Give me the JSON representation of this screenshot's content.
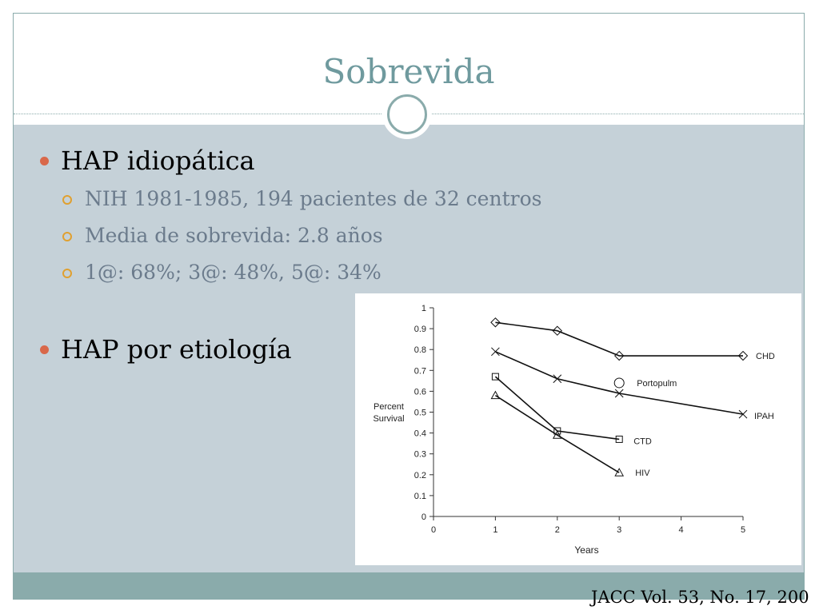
{
  "slide": {
    "title": "Sobrevida",
    "bullets": [
      {
        "text": "HAP idiopática",
        "sub": [
          "NIH 1981-1985, 194 pacientes de 32 centros",
          "Media de sobrevida: 2.8 años",
          "1@: 68%; 3@: 48%, 5@: 34%"
        ]
      },
      {
        "text": "HAP por etiología",
        "sub": []
      }
    ],
    "citation": "JACC Vol. 53, No. 17, 200"
  },
  "colors": {
    "title": "#6f9a9e",
    "content_bg": "#c5d1d8",
    "accent_bar": "#8aabab",
    "bullet_dot": "#d9684a",
    "sub_bullet_ring": "#e0a030",
    "sub_text": "#6b7b8c"
  },
  "chart_data": {
    "type": "line",
    "xlabel": "Years",
    "ylabel": "Percent Survival",
    "xlim": [
      0,
      5
    ],
    "ylim": [
      0,
      1
    ],
    "x_ticks": [
      "0",
      "1",
      "2",
      "3",
      "4",
      "5"
    ],
    "y_ticks": [
      "0",
      "0.1",
      "0.2",
      "0.3",
      "0.4",
      "0.5",
      "0.6",
      "0.7",
      "0.8",
      "0.9",
      "1"
    ],
    "grid": false,
    "series": [
      {
        "name": "CHD",
        "marker": "diamond",
        "x": [
          1,
          2,
          3,
          5
        ],
        "y": [
          0.93,
          0.89,
          0.77,
          0.77
        ]
      },
      {
        "name": "Portopulm",
        "marker": "circle",
        "x": [
          3
        ],
        "y": [
          0.64
        ]
      },
      {
        "name": "IPAH",
        "marker": "x",
        "x": [
          1,
          2,
          3,
          5
        ],
        "y": [
          0.79,
          0.66,
          0.59,
          0.49
        ]
      },
      {
        "name": "CTD",
        "marker": "square",
        "x": [
          1,
          2,
          3
        ],
        "y": [
          0.67,
          0.41,
          0.37
        ]
      },
      {
        "name": "HIV",
        "marker": "triangle",
        "x": [
          1,
          2,
          3
        ],
        "y": [
          0.58,
          0.39,
          0.21
        ]
      }
    ]
  }
}
